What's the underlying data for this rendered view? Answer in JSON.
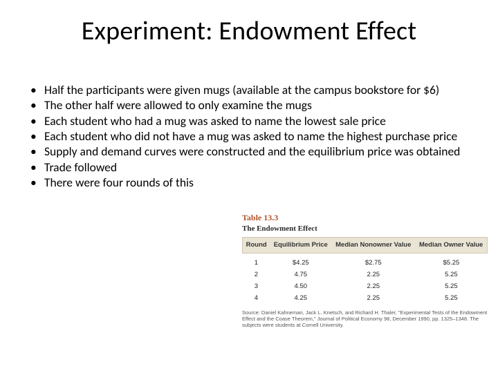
{
  "title": "Experiment: Endowment Effect",
  "bullets": [
    "Half the participants were given mugs (available at the campus bookstore for $6)",
    "The other half were allowed to only examine the mugs",
    "Each student who had a mug was asked to name the lowest sale price",
    "Each student who did not have a mug was asked to name the highest purchase price",
    "Supply and demand curves were constructed and the equilibrium price was obtained",
    "Trade followed",
    "There were four rounds of this"
  ],
  "table": {
    "label": "Table 13.3",
    "caption": "The Endowment Effect",
    "columns": [
      "Round",
      "Equilibrium Price",
      "Median Nonowner Value",
      "Median Owner Value"
    ],
    "rows": [
      [
        "1",
        "$4.25",
        "$2.75",
        "$5.25"
      ],
      [
        "2",
        "4.75",
        "2.25",
        "5.25"
      ],
      [
        "3",
        "4.50",
        "2.25",
        "5.25"
      ],
      [
        "4",
        "4.25",
        "2.25",
        "5.25"
      ]
    ],
    "header_bg": "#e9e4d4",
    "header_border": "#cfc8b0",
    "label_color": "#b0522a"
  },
  "source": "Source: Daniel Kahneman, Jack L. Knetsch, and Richard H. Thaler, \"Experimental Tests of the Endowment Effect and the Coase Theorem,\" Journal of Political Economy 98, December 1990, pp. 1325–1348. The subjects were students at Cornell University."
}
